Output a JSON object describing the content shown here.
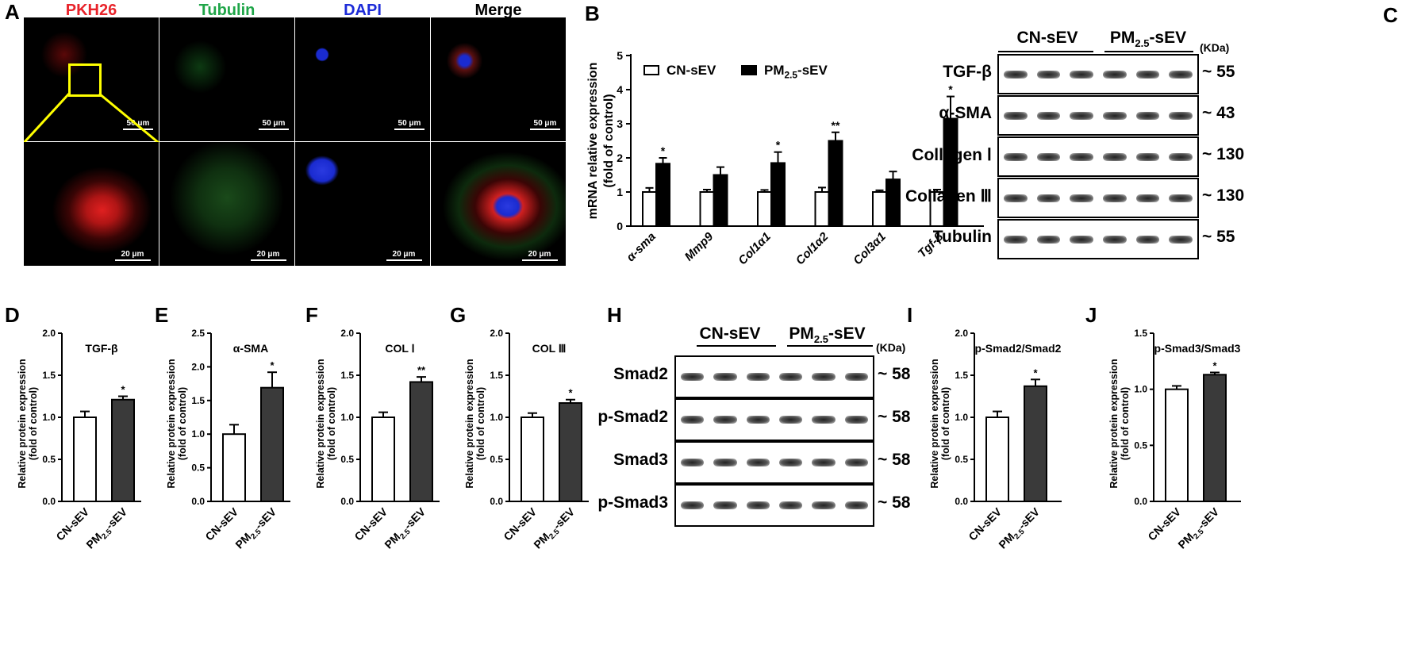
{
  "panels": {
    "A": "A",
    "B": "B",
    "C": "C",
    "D": "D",
    "E": "E",
    "F": "F",
    "G": "G",
    "H": "H",
    "I": "I",
    "J": "J"
  },
  "microscopy": {
    "channels": [
      {
        "label": "PKH26",
        "color": "#e8232a"
      },
      {
        "label": "Tubulin",
        "color": "#1fa548"
      },
      {
        "label": "DAPI",
        "color": "#1c2bd8"
      },
      {
        "label": "Merge",
        "color": "#000000"
      }
    ],
    "scalebar_top": "50 μm",
    "scalebar_bottom": "20 μm",
    "inset_color": "#ffff00"
  },
  "blot_C": {
    "groups": {
      "g1": "CN-sEV",
      "g2": "PM",
      "g2sub": "2.5",
      "g2suf": "-sEV"
    },
    "unit": "(KDa)",
    "rows": [
      {
        "label": "TGF-β",
        "mw": "~ 55"
      },
      {
        "label": "α-SMA",
        "mw": "~ 43"
      },
      {
        "label": "Collagen Ⅰ",
        "mw": "~ 130"
      },
      {
        "label": "Collagen Ⅲ",
        "mw": "~ 130"
      },
      {
        "label": "Tubulin",
        "mw": "~ 55"
      }
    ]
  },
  "blot_H": {
    "groups": {
      "g1": "CN-sEV",
      "g2": "PM",
      "g2sub": "2.5",
      "g2suf": "-sEV"
    },
    "unit": "(KDa)",
    "rows": [
      {
        "label": "Smad2",
        "mw": "~ 58"
      },
      {
        "label": "p-Smad2",
        "mw": "~ 58"
      },
      {
        "label": "Smad3",
        "mw": "~ 58"
      },
      {
        "label": "p-Smad3",
        "mw": "~ 58"
      }
    ]
  },
  "chart_data": [
    {
      "panel": "B",
      "type": "bar",
      "ylabel": "mRNA relative expression",
      "ylabel2": "(fold of control)",
      "ylim": [
        0,
        5
      ],
      "yticks": [
        0,
        1,
        2,
        3,
        4,
        5
      ],
      "categories": [
        "α-sma",
        "Mmp9",
        "Col1α1",
        "Col1α2",
        "Col3α1",
        "Tgf-β"
      ],
      "series": [
        {
          "name": "CN-sEV",
          "values": [
            1.0,
            1.0,
            1.0,
            1.0,
            1.0,
            1.0
          ],
          "errors": [
            0.12,
            0.07,
            0.06,
            0.13,
            0.05,
            0.07
          ],
          "fill": "#ffffff"
        },
        {
          "name": "PM2.5-sEV",
          "values": [
            1.83,
            1.5,
            1.85,
            2.5,
            1.37,
            3.15
          ],
          "errors": [
            0.17,
            0.23,
            0.32,
            0.25,
            0.23,
            0.65
          ],
          "fill": "#000000"
        }
      ],
      "significance": [
        "*",
        "",
        "*",
        "**",
        "",
        "*"
      ],
      "legend": {
        "s1": "CN-sEV",
        "s2": "PM",
        "s2sub": "2.5",
        "s2suf": "-sEV"
      }
    },
    {
      "panel": "D",
      "type": "bar",
      "title": "TGF-β",
      "ylabel": "Relative protein expression",
      "ylabel2": "(fold of control)",
      "ylim": [
        0,
        2.0
      ],
      "yticks": [
        "0.0",
        "0.5",
        "1.0",
        "1.5",
        "2.0"
      ],
      "categories": [
        "CN-sEV",
        "PM2.5-sEV"
      ],
      "values": [
        1.0,
        1.21
      ],
      "errors": [
        0.07,
        0.04
      ],
      "significance": "*"
    },
    {
      "panel": "E",
      "type": "bar",
      "title": "α-SMA",
      "ylabel": "Relative protein expression",
      "ylabel2": "(fold of control)",
      "ylim": [
        0,
        2.5
      ],
      "yticks": [
        "0.0",
        "0.5",
        "1.0",
        "1.5",
        "2.0",
        "2.5"
      ],
      "categories": [
        "CN-sEV",
        "PM2.5-sEV"
      ],
      "values": [
        1.0,
        1.69
      ],
      "errors": [
        0.14,
        0.23
      ],
      "significance": "*"
    },
    {
      "panel": "F",
      "type": "bar",
      "title": "COL Ⅰ",
      "ylabel": "Relative protein expression",
      "ylabel2": "(fold of control)",
      "ylim": [
        0,
        2.0
      ],
      "yticks": [
        "0.0",
        "0.5",
        "1.0",
        "1.5",
        "2.0"
      ],
      "categories": [
        "CN-sEV",
        "PM2.5-sEV"
      ],
      "values": [
        1.0,
        1.42
      ],
      "errors": [
        0.06,
        0.06
      ],
      "significance": "**"
    },
    {
      "panel": "G",
      "type": "bar",
      "title": "COL Ⅲ",
      "ylabel": "Relative protein expression",
      "ylabel2": "(fold of control)",
      "ylim": [
        0,
        2.0
      ],
      "yticks": [
        "0.0",
        "0.5",
        "1.0",
        "1.5",
        "2.0"
      ],
      "categories": [
        "CN-sEV",
        "PM2.5-sEV"
      ],
      "values": [
        1.0,
        1.17
      ],
      "errors": [
        0.05,
        0.04
      ],
      "significance": "*"
    },
    {
      "panel": "I",
      "type": "bar",
      "title": "p-Smad2/Smad2",
      "ylabel": "Relative protein expression",
      "ylabel2": "(fold of control)",
      "ylim": [
        0,
        2.0
      ],
      "yticks": [
        "0.0",
        "0.5",
        "1.0",
        "1.5",
        "2.0"
      ],
      "categories": [
        "CN-sEV",
        "PM2.5-sEV"
      ],
      "values": [
        1.0,
        1.37
      ],
      "errors": [
        0.07,
        0.08
      ],
      "significance": "*"
    },
    {
      "panel": "J",
      "type": "bar",
      "title": "p-Smad3/Smad3",
      "ylabel": "Relative protein expression",
      "ylabel2": "(fold of control)",
      "ylim": [
        0,
        1.5
      ],
      "yticks": [
        "0.0",
        "0.5",
        "1.0",
        "1.5"
      ],
      "categories": [
        "CN-sEV",
        "PM2.5-sEV"
      ],
      "values": [
        1.0,
        1.13
      ],
      "errors": [
        0.03,
        0.02
      ],
      "significance": "*"
    }
  ]
}
